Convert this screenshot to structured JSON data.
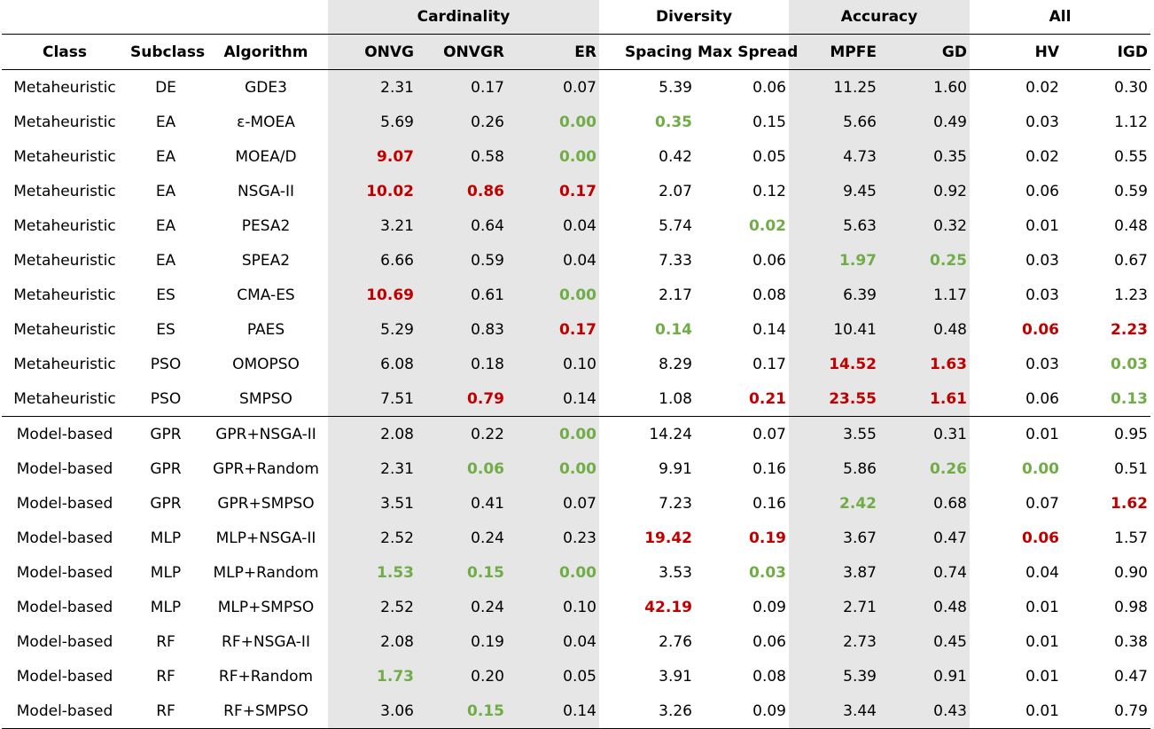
{
  "groups": [
    "Cardinality",
    "Diversity",
    "Accuracy",
    "All"
  ],
  "columns": [
    "Class",
    "Subclass",
    "Algorithm",
    "ONVG",
    "ONVGR",
    "ER",
    "Spacing",
    "Max Spread",
    "MPFE",
    "GD",
    "HV",
    "IGD"
  ],
  "colors": {
    "worst": "#c00000",
    "best": "#70ad47",
    "shade": "#e6e6e6"
  },
  "rows": [
    {
      "cls": "Metaheuristic",
      "sub": "DE",
      "alg": "GDE3",
      "vals": [
        "2.31",
        "0.17",
        "0.07",
        "5.39",
        "0.06",
        "11.25",
        "1.60",
        "0.02",
        "0.30"
      ],
      "hl": [
        "",
        "",
        "",
        "",
        "",
        "",
        "",
        "",
        ""
      ]
    },
    {
      "cls": "Metaheuristic",
      "sub": "EA",
      "alg": "ε-MOEA",
      "vals": [
        "5.69",
        "0.26",
        "0.00",
        "0.35",
        "0.15",
        "5.66",
        "0.49",
        "0.03",
        "1.12"
      ],
      "hl": [
        "",
        "",
        "good",
        "good",
        "",
        "",
        "",
        "",
        ""
      ]
    },
    {
      "cls": "Metaheuristic",
      "sub": "EA",
      "alg": "MOEA/D",
      "vals": [
        "9.07",
        "0.58",
        "0.00",
        "0.42",
        "0.05",
        "4.73",
        "0.35",
        "0.02",
        "0.55"
      ],
      "hl": [
        "bad",
        "",
        "good",
        "",
        "",
        "",
        "",
        "",
        ""
      ]
    },
    {
      "cls": "Metaheuristic",
      "sub": "EA",
      "alg": "NSGA-II",
      "vals": [
        "10.02",
        "0.86",
        "0.17",
        "2.07",
        "0.12",
        "9.45",
        "0.92",
        "0.06",
        "0.59"
      ],
      "hl": [
        "bad",
        "bad",
        "bad",
        "",
        "",
        "",
        "",
        "",
        ""
      ]
    },
    {
      "cls": "Metaheuristic",
      "sub": "EA",
      "alg": "PESA2",
      "vals": [
        "3.21",
        "0.64",
        "0.04",
        "5.74",
        "0.02",
        "5.63",
        "0.32",
        "0.01",
        "0.48"
      ],
      "hl": [
        "",
        "",
        "",
        "",
        "good",
        "",
        "",
        "",
        ""
      ]
    },
    {
      "cls": "Metaheuristic",
      "sub": "EA",
      "alg": "SPEA2",
      "vals": [
        "6.66",
        "0.59",
        "0.04",
        "7.33",
        "0.06",
        "1.97",
        "0.25",
        "0.03",
        "0.67"
      ],
      "hl": [
        "",
        "",
        "",
        "",
        "",
        "good",
        "good",
        "",
        ""
      ]
    },
    {
      "cls": "Metaheuristic",
      "sub": "ES",
      "alg": "CMA-ES",
      "vals": [
        "10.69",
        "0.61",
        "0.00",
        "2.17",
        "0.08",
        "6.39",
        "1.17",
        "0.03",
        "1.23"
      ],
      "hl": [
        "bad",
        "",
        "good",
        "",
        "",
        "",
        "",
        "",
        ""
      ]
    },
    {
      "cls": "Metaheuristic",
      "sub": "ES",
      "alg": "PAES",
      "vals": [
        "5.29",
        "0.83",
        "0.17",
        "0.14",
        "0.14",
        "10.41",
        "0.48",
        "0.06",
        "2.23"
      ],
      "hl": [
        "",
        "",
        "bad",
        "good",
        "",
        "",
        "",
        "bad",
        "bad"
      ]
    },
    {
      "cls": "Metaheuristic",
      "sub": "PSO",
      "alg": "OMOPSO",
      "vals": [
        "6.08",
        "0.18",
        "0.10",
        "8.29",
        "0.17",
        "14.52",
        "1.63",
        "0.03",
        "0.03"
      ],
      "hl": [
        "",
        "",
        "",
        "",
        "",
        "bad",
        "bad",
        "",
        "good"
      ]
    },
    {
      "cls": "Metaheuristic",
      "sub": "PSO",
      "alg": "SMPSO",
      "vals": [
        "7.51",
        "0.79",
        "0.14",
        "1.08",
        "0.21",
        "23.55",
        "1.61",
        "0.06",
        "0.13"
      ],
      "hl": [
        "",
        "bad",
        "",
        "",
        "bad",
        "bad",
        "bad",
        "",
        "good"
      ]
    },
    {
      "cls": "Model-based",
      "sub": "GPR",
      "alg": "GPR+NSGA-II",
      "vals": [
        "2.08",
        "0.22",
        "0.00",
        "14.24",
        "0.07",
        "3.55",
        "0.31",
        "0.01",
        "0.95"
      ],
      "hl": [
        "",
        "",
        "good",
        "",
        "",
        "",
        "",
        "",
        ""
      ]
    },
    {
      "cls": "Model-based",
      "sub": "GPR",
      "alg": "GPR+Random",
      "vals": [
        "2.31",
        "0.06",
        "0.00",
        "9.91",
        "0.16",
        "5.86",
        "0.26",
        "0.00",
        "0.51"
      ],
      "hl": [
        "",
        "good",
        "good",
        "",
        "",
        "",
        "good",
        "good",
        ""
      ]
    },
    {
      "cls": "Model-based",
      "sub": "GPR",
      "alg": "GPR+SMPSO",
      "vals": [
        "3.51",
        "0.41",
        "0.07",
        "7.23",
        "0.16",
        "2.42",
        "0.68",
        "0.07",
        "1.62"
      ],
      "hl": [
        "",
        "",
        "",
        "",
        "",
        "good",
        "",
        "",
        "bad"
      ]
    },
    {
      "cls": "Model-based",
      "sub": "MLP",
      "alg": "MLP+NSGA-II",
      "vals": [
        "2.52",
        "0.24",
        "0.23",
        "19.42",
        "0.19",
        "3.67",
        "0.47",
        "0.06",
        "1.57"
      ],
      "hl": [
        "",
        "",
        "",
        "bad",
        "bad",
        "",
        "",
        "bad",
        ""
      ]
    },
    {
      "cls": "Model-based",
      "sub": "MLP",
      "alg": "MLP+Random",
      "vals": [
        "1.53",
        "0.15",
        "0.00",
        "3.53",
        "0.03",
        "3.87",
        "0.74",
        "0.04",
        "0.90"
      ],
      "hl": [
        "good",
        "good",
        "good",
        "",
        "good",
        "",
        "",
        "",
        ""
      ]
    },
    {
      "cls": "Model-based",
      "sub": "MLP",
      "alg": "MLP+SMPSO",
      "vals": [
        "2.52",
        "0.24",
        "0.10",
        "42.19",
        "0.09",
        "2.71",
        "0.48",
        "0.01",
        "0.98"
      ],
      "hl": [
        "",
        "",
        "",
        "bad",
        "",
        "",
        "",
        "",
        ""
      ]
    },
    {
      "cls": "Model-based",
      "sub": "RF",
      "alg": "RF+NSGA-II",
      "vals": [
        "2.08",
        "0.19",
        "0.04",
        "2.76",
        "0.06",
        "2.73",
        "0.45",
        "0.01",
        "0.38"
      ],
      "hl": [
        "",
        "",
        "",
        "",
        "",
        "",
        "",
        "",
        ""
      ]
    },
    {
      "cls": "Model-based",
      "sub": "RF",
      "alg": "RF+Random",
      "vals": [
        "1.73",
        "0.20",
        "0.05",
        "3.91",
        "0.08",
        "5.39",
        "0.91",
        "0.01",
        "0.47"
      ],
      "hl": [
        "good",
        "",
        "",
        "",
        "",
        "",
        "",
        "",
        ""
      ]
    },
    {
      "cls": "Model-based",
      "sub": "RF",
      "alg": "RF+SMPSO",
      "vals": [
        "3.06",
        "0.15",
        "0.14",
        "3.26",
        "0.09",
        "3.44",
        "0.43",
        "0.01",
        "0.79"
      ],
      "hl": [
        "",
        "good",
        "",
        "",
        "",
        "",
        "",
        "",
        ""
      ]
    }
  ]
}
